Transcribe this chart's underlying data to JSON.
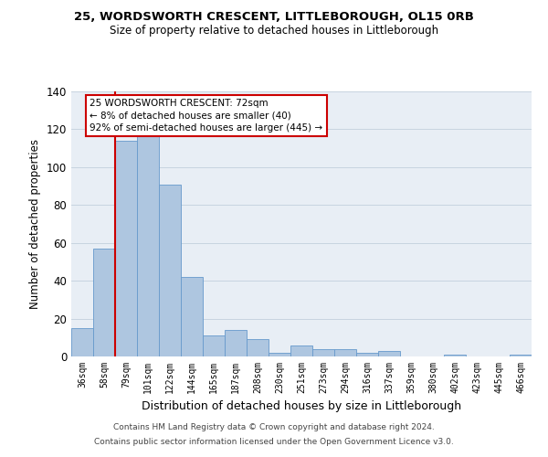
{
  "title": "25, WORDSWORTH CRESCENT, LITTLEBOROUGH, OL15 0RB",
  "subtitle": "Size of property relative to detached houses in Littleborough",
  "xlabel": "Distribution of detached houses by size in Littleborough",
  "ylabel": "Number of detached properties",
  "bar_labels": [
    "36sqm",
    "58sqm",
    "79sqm",
    "101sqm",
    "122sqm",
    "144sqm",
    "165sqm",
    "187sqm",
    "208sqm",
    "230sqm",
    "251sqm",
    "273sqm",
    "294sqm",
    "316sqm",
    "337sqm",
    "359sqm",
    "380sqm",
    "402sqm",
    "423sqm",
    "445sqm",
    "466sqm"
  ],
  "bar_values": [
    15,
    57,
    114,
    118,
    91,
    42,
    11,
    14,
    9,
    2,
    6,
    4,
    4,
    2,
    3,
    0,
    0,
    1,
    0,
    0,
    1
  ],
  "bar_color": "#aec6e0",
  "bar_edge_color": "#6699cc",
  "vline_color": "#cc0000",
  "ylim": [
    0,
    140
  ],
  "yticks": [
    0,
    20,
    40,
    60,
    80,
    100,
    120,
    140
  ],
  "annotation_title": "25 WORDSWORTH CRESCENT: 72sqm",
  "annotation_line1": "← 8% of detached houses are smaller (40)",
  "annotation_line2": "92% of semi-detached houses are larger (445) →",
  "annotation_box_color": "#ffffff",
  "annotation_box_edge": "#cc0000",
  "footer1": "Contains HM Land Registry data © Crown copyright and database right 2024.",
  "footer2": "Contains public sector information licensed under the Open Government Licence v3.0.",
  "bg_color": "#e8eef5",
  "fig_bg_color": "#ffffff"
}
